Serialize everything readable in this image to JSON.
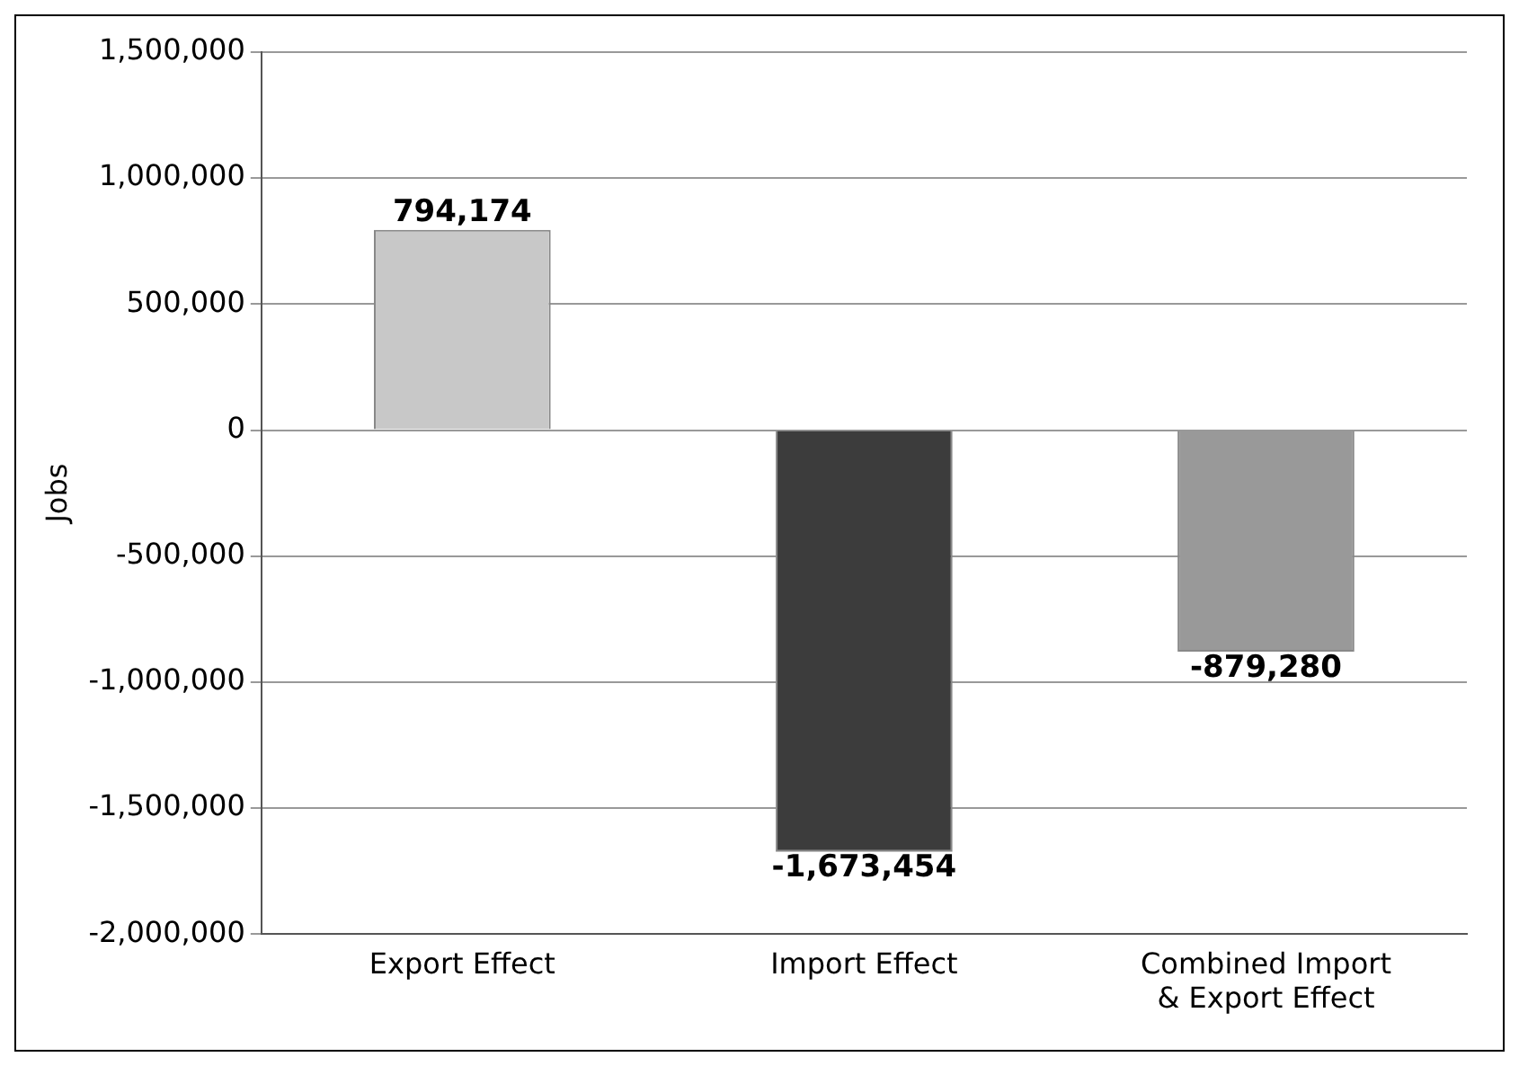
{
  "chart_data": {
    "type": "bar",
    "ylabel": "Jobs",
    "categories": [
      "Export Effect",
      "Import Effect",
      "Combined Import & Export Effect"
    ],
    "values": [
      794174,
      -1673454,
      -879280
    ],
    "colors": [
      "#c8c8c8",
      "#3c3c3c",
      "#999999"
    ],
    "value_labels": [
      "794,174",
      "-1,673,454",
      "-879,280"
    ],
    "ylim": [
      -2000000,
      1500000
    ],
    "yticks": [
      {
        "value": -2000000,
        "label": "-2,000,000"
      },
      {
        "value": -1500000,
        "label": "-1,500,000"
      },
      {
        "value": -1000000,
        "label": "-1,000,000"
      },
      {
        "value": -500000,
        "label": "-500,000"
      },
      0,
      {
        "value": 500000,
        "label": "500,000"
      },
      {
        "value": 1000000,
        "label": "1,000,000"
      },
      {
        "value": 1500000,
        "label": "1,500,000"
      }
    ],
    "grid": "y",
    "legend": false
  }
}
